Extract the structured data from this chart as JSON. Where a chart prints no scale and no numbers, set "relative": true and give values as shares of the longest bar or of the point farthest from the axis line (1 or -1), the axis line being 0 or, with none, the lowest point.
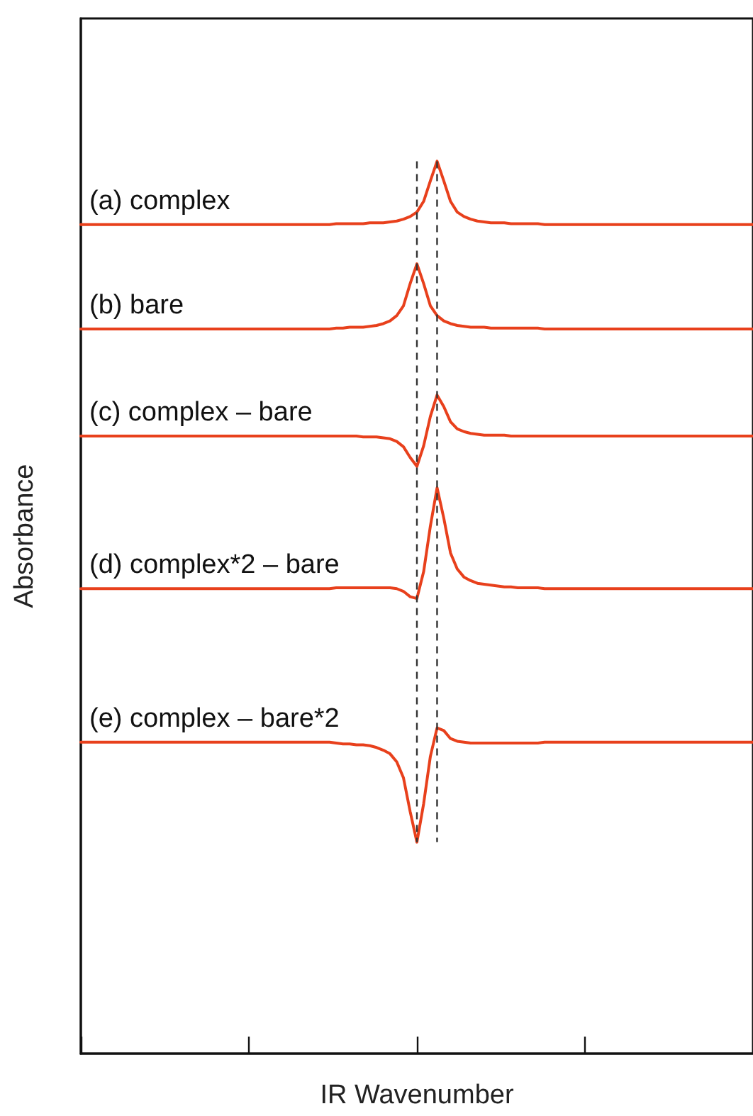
{
  "chart_data": {
    "type": "line",
    "xlabel": "IR Wavenumber",
    "ylabel": "Absorbance",
    "relative": true,
    "tick_labels": false,
    "legend": false,
    "grid": false,
    "marker": "none",
    "line_style": "solid",
    "categories": [
      null,
      null,
      null,
      null,
      null,
      null,
      null,
      null,
      null,
      null,
      null,
      null,
      null,
      null,
      null,
      null,
      null,
      null,
      null,
      null,
      null,
      null,
      null,
      null,
      null,
      null,
      null,
      null,
      null,
      null,
      null,
      null,
      null,
      null,
      null,
      null,
      null,
      null,
      null,
      null,
      null,
      null,
      null,
      null,
      null,
      null,
      null,
      null,
      null,
      null,
      null,
      null,
      null,
      null,
      null,
      null,
      null,
      null,
      null,
      null,
      null,
      null,
      null,
      null,
      null,
      null,
      null,
      null,
      null,
      null,
      null,
      null,
      null,
      null,
      null,
      null,
      null,
      null,
      null,
      null,
      null,
      null,
      null,
      null,
      null,
      null,
      null,
      null,
      null,
      null,
      null,
      null,
      null,
      null,
      null,
      null,
      null,
      null,
      null,
      null,
      null
    ],
    "series": [
      {
        "name": "(a) complex",
        "color": "#e8401c",
        "values": [
          0.929,
          0.929,
          0.929,
          0.929,
          0.929,
          0.929,
          0.929,
          0.929,
          0.929,
          0.929,
          0.929,
          0.929,
          0.929,
          0.929,
          0.929,
          0.929,
          0.929,
          0.929,
          0.929,
          0.929,
          0.929,
          0.929,
          0.929,
          0.929,
          0.929,
          0.929,
          0.929,
          0.929,
          0.929,
          0.929,
          0.929,
          0.929,
          0.929,
          0.929,
          0.929,
          0.929,
          0.929,
          0.929,
          0.93,
          0.93,
          0.93,
          0.93,
          0.93,
          0.931,
          0.931,
          0.931,
          0.932,
          0.933,
          0.935,
          0.938,
          0.943,
          0.955,
          0.978,
          1.0,
          0.978,
          0.955,
          0.943,
          0.938,
          0.935,
          0.933,
          0.932,
          0.931,
          0.931,
          0.931,
          0.93,
          0.93,
          0.93,
          0.93,
          0.93,
          0.929,
          0.929,
          0.929,
          0.929,
          0.929,
          0.929,
          0.929,
          0.929,
          0.929,
          0.929,
          0.929,
          0.929,
          0.929,
          0.929,
          0.929,
          0.929,
          0.929,
          0.929,
          0.929,
          0.929,
          0.929,
          0.929,
          0.929,
          0.929,
          0.929,
          0.929,
          0.929,
          0.929,
          0.929,
          0.929,
          0.929,
          0.929
        ]
      },
      {
        "name": "(b) bare",
        "color": "#e8401c",
        "values": [
          0.812,
          0.812,
          0.812,
          0.812,
          0.812,
          0.812,
          0.812,
          0.812,
          0.812,
          0.812,
          0.812,
          0.812,
          0.812,
          0.812,
          0.812,
          0.812,
          0.812,
          0.812,
          0.812,
          0.812,
          0.812,
          0.812,
          0.812,
          0.812,
          0.812,
          0.812,
          0.812,
          0.812,
          0.812,
          0.812,
          0.812,
          0.812,
          0.812,
          0.812,
          0.812,
          0.812,
          0.812,
          0.812,
          0.813,
          0.813,
          0.814,
          0.814,
          0.814,
          0.815,
          0.816,
          0.818,
          0.821,
          0.827,
          0.838,
          0.863,
          0.885,
          0.863,
          0.838,
          0.827,
          0.821,
          0.818,
          0.816,
          0.815,
          0.814,
          0.814,
          0.814,
          0.813,
          0.813,
          0.813,
          0.813,
          0.813,
          0.813,
          0.813,
          0.813,
          0.812,
          0.812,
          0.812,
          0.812,
          0.812,
          0.812,
          0.812,
          0.812,
          0.812,
          0.812,
          0.812,
          0.812,
          0.812,
          0.812,
          0.812,
          0.812,
          0.812,
          0.812,
          0.812,
          0.812,
          0.812,
          0.812,
          0.812,
          0.812,
          0.812,
          0.812,
          0.812,
          0.812,
          0.812,
          0.812,
          0.812,
          0.812
        ]
      },
      {
        "name": "(c) complex – bare",
        "color": "#e8401c",
        "values": [
          0.692,
          0.692,
          0.692,
          0.692,
          0.692,
          0.692,
          0.692,
          0.692,
          0.692,
          0.692,
          0.692,
          0.692,
          0.692,
          0.692,
          0.692,
          0.692,
          0.692,
          0.692,
          0.692,
          0.692,
          0.692,
          0.692,
          0.692,
          0.692,
          0.692,
          0.692,
          0.692,
          0.692,
          0.692,
          0.692,
          0.692,
          0.692,
          0.692,
          0.692,
          0.692,
          0.692,
          0.692,
          0.692,
          0.692,
          0.692,
          0.692,
          0.692,
          0.691,
          0.691,
          0.691,
          0.69,
          0.689,
          0.686,
          0.68,
          0.668,
          0.658,
          0.681,
          0.714,
          0.738,
          0.725,
          0.708,
          0.7,
          0.697,
          0.695,
          0.694,
          0.693,
          0.693,
          0.693,
          0.693,
          0.692,
          0.692,
          0.692,
          0.692,
          0.692,
          0.692,
          0.692,
          0.692,
          0.692,
          0.692,
          0.692,
          0.692,
          0.692,
          0.692,
          0.692,
          0.692,
          0.692,
          0.692,
          0.692,
          0.692,
          0.692,
          0.692,
          0.692,
          0.692,
          0.692,
          0.692,
          0.692,
          0.692,
          0.692,
          0.692,
          0.692,
          0.692,
          0.692,
          0.692,
          0.692,
          0.692,
          0.692
        ]
      },
      {
        "name": "(d) complex*2 – bare",
        "color": "#e8401c",
        "values": [
          0.521,
          0.521,
          0.521,
          0.521,
          0.521,
          0.521,
          0.521,
          0.521,
          0.521,
          0.521,
          0.521,
          0.521,
          0.521,
          0.521,
          0.521,
          0.521,
          0.521,
          0.521,
          0.521,
          0.521,
          0.521,
          0.521,
          0.521,
          0.521,
          0.521,
          0.521,
          0.521,
          0.521,
          0.521,
          0.521,
          0.521,
          0.521,
          0.521,
          0.521,
          0.521,
          0.521,
          0.521,
          0.521,
          0.522,
          0.522,
          0.522,
          0.522,
          0.522,
          0.522,
          0.522,
          0.522,
          0.522,
          0.521,
          0.518,
          0.512,
          0.51,
          0.54,
          0.591,
          0.634,
          0.6,
          0.561,
          0.543,
          0.534,
          0.53,
          0.527,
          0.526,
          0.525,
          0.524,
          0.523,
          0.523,
          0.522,
          0.522,
          0.522,
          0.522,
          0.521,
          0.521,
          0.521,
          0.521,
          0.521,
          0.521,
          0.521,
          0.521,
          0.521,
          0.521,
          0.521,
          0.521,
          0.521,
          0.521,
          0.521,
          0.521,
          0.521,
          0.521,
          0.521,
          0.521,
          0.521,
          0.521,
          0.521,
          0.521,
          0.521,
          0.521,
          0.521,
          0.521,
          0.521,
          0.521,
          0.521,
          0.521
        ]
      },
      {
        "name": "(e) complex – bare*2",
        "color": "#e8401c",
        "values": [
          0.349,
          0.349,
          0.349,
          0.349,
          0.349,
          0.349,
          0.349,
          0.349,
          0.349,
          0.349,
          0.349,
          0.349,
          0.349,
          0.349,
          0.349,
          0.349,
          0.349,
          0.349,
          0.349,
          0.349,
          0.349,
          0.349,
          0.349,
          0.349,
          0.349,
          0.349,
          0.349,
          0.349,
          0.349,
          0.349,
          0.349,
          0.349,
          0.349,
          0.349,
          0.349,
          0.349,
          0.349,
          0.349,
          0.348,
          0.347,
          0.347,
          0.346,
          0.346,
          0.345,
          0.343,
          0.34,
          0.336,
          0.327,
          0.309,
          0.271,
          0.237,
          0.28,
          0.333,
          0.365,
          0.362,
          0.353,
          0.35,
          0.349,
          0.348,
          0.348,
          0.348,
          0.348,
          0.348,
          0.348,
          0.348,
          0.348,
          0.348,
          0.348,
          0.348,
          0.349,
          0.349,
          0.349,
          0.349,
          0.349,
          0.349,
          0.349,
          0.349,
          0.349,
          0.349,
          0.349,
          0.349,
          0.349,
          0.349,
          0.349,
          0.349,
          0.349,
          0.349,
          0.349,
          0.349,
          0.349,
          0.349,
          0.349,
          0.349,
          0.349,
          0.349,
          0.349,
          0.349,
          0.349,
          0.349,
          0.349,
          0.349
        ]
      }
    ]
  }
}
